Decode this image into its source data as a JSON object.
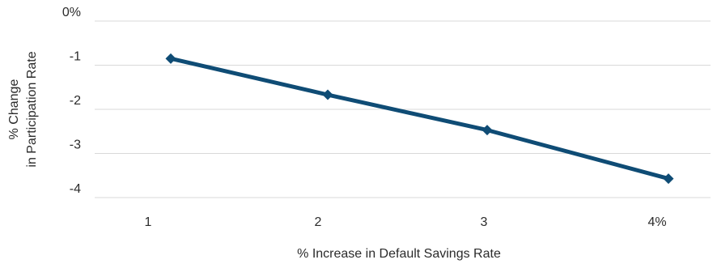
{
  "chart_data": {
    "type": "line",
    "title": "",
    "xlabel": "% Increase in Default Savings Rate",
    "ylabel_lines": [
      "% Change",
      "in Participation Rate"
    ],
    "x": [
      1,
      2,
      3,
      4
    ],
    "x_tick_labels": [
      "1",
      "2",
      "3",
      "4%"
    ],
    "y_tick_labels": [
      "0%",
      "-1",
      "-2",
      "-3",
      "-4"
    ],
    "y_ticks": [
      0,
      -1,
      -2,
      -3,
      -4
    ],
    "ylim": [
      -4,
      0
    ],
    "grid": "horizontal",
    "legend": "none",
    "series": [
      {
        "values": [
          -0.85,
          -1.67,
          -2.47,
          -3.57
        ],
        "color": "#0f4c75",
        "marker": "diamond"
      }
    ]
  }
}
